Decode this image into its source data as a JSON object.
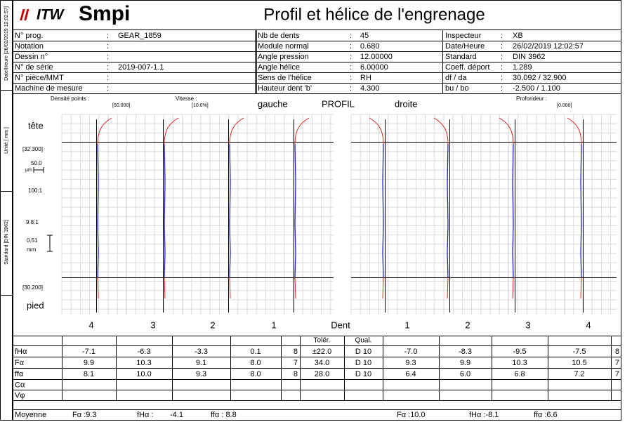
{
  "sidebar": {
    "date": "Date/Heure [26/02/2019 12:02:57]",
    "unit": "Unité [ mm ]",
    "standard": "Standard [DIN 3962]"
  },
  "header": {
    "logo_prefix": "ITW",
    "logo": "Smpi",
    "title": "Profil et hélice de l'engrenage"
  },
  "info": {
    "separator": ":",
    "left": [
      {
        "label": "N° prog.",
        "value": "GEAR_1859"
      },
      {
        "label": "Notation"
      },
      {
        "label": "Dessin n°"
      },
      {
        "label": "N° de série",
        "value": "2019-007-1.1"
      },
      {
        "label": "N° pièce/MMT"
      },
      {
        "label": "Machine de mesure"
      }
    ],
    "middle": [
      {
        "label": "Nb de dents",
        "value": "45"
      },
      {
        "label": "Module normal",
        "value": "0.680"
      },
      {
        "label": "Angle pression",
        "value": "12.00000"
      },
      {
        "label": "Angle hélice",
        "value": "6.00000"
      },
      {
        "label": "Sens de l'hélice",
        "value": "RH"
      },
      {
        "label": "Hauteur dent 'b'",
        "value": "4.300"
      }
    ],
    "right": [
      {
        "label": "Inspecteur",
        "value": "XB"
      },
      {
        "label": "Date/Heure",
        "value": "26/02/2019 12:02:57"
      },
      {
        "label": "Standard",
        "value": "DIN 3962"
      },
      {
        "label": "Coeff. déport",
        "value": "1.289"
      },
      {
        "label": "df / da",
        "value": "30.092 / 32.900"
      },
      {
        "label": "bu / bo",
        "value": "-2.500 / 1.100"
      }
    ]
  },
  "plot": {
    "density_label": "Densité points :",
    "density": "[50.000]",
    "speed_label": "Vitesse :",
    "speed": "[10.0%]",
    "left_title": "gauche",
    "title": "PROFIL",
    "right_title": "droite",
    "depth_label": "Profondeur :",
    "depth": "[0.000]",
    "tip": "tête",
    "tip_value": "[32.300]",
    "scale_value": "50.0",
    "scale_unit": "µm",
    "magnification": "100:1",
    "length_ratio": "9.8:1",
    "length_value": "0.51",
    "length_unit": "mm",
    "root_value": "[30.200]",
    "root": "pied",
    "left_teeth": [
      "4",
      "3",
      "2",
      "1"
    ],
    "teeth_label": "Dent",
    "right_teeth": [
      "1",
      "2",
      "3",
      "4"
    ]
  },
  "table": {
    "tolerance": "Tolér.",
    "quality": "Qual.",
    "rows": [
      {
        "label": "fHα",
        "cells": [
          "-7.1",
          "-6.3",
          "-3.3",
          "0.1",
          "8",
          "±22.0",
          "D 10",
          "-7.0",
          "-8.3",
          "-9.5",
          "-7.5",
          "8"
        ]
      },
      {
        "label": "Fα",
        "cells": [
          "9.9",
          "10.3",
          "9.1",
          "8.0",
          "7",
          "34.0",
          "D 10",
          "9.3",
          "9.9",
          "10.3",
          "10.5",
          "7"
        ]
      },
      {
        "label": "ffα",
        "cells": [
          "8.1",
          "10.0",
          "9.3",
          "8.0",
          "8",
          "28.0",
          "D 10",
          "6.4",
          "6.0",
          "6.8",
          "7.2",
          "7"
        ]
      },
      {
        "label": "Cα"
      },
      {
        "label": "Vφ"
      }
    ],
    "mean_label": "Moyenne",
    "mean_left": [
      "Fα :9.3",
      "fHα :",
      "-4.1",
      "ffα : 8.8"
    ],
    "mean_right": [
      "Fα :10.0",
      "fHα :-8.1",
      "ffα :6.6"
    ]
  }
}
